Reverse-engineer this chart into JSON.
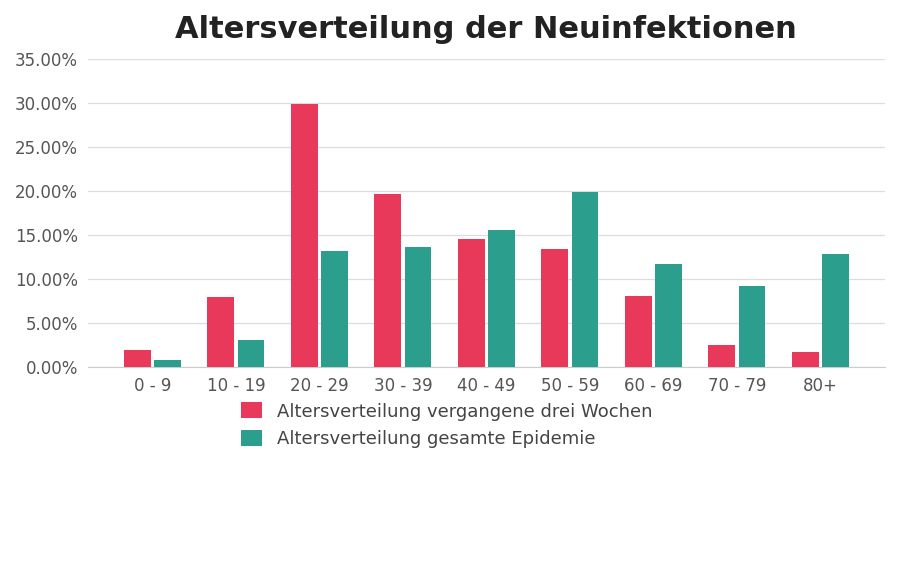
{
  "title": "Altersverteilung der Neuinfektionen",
  "categories": [
    "0 - 9",
    "10 - 19",
    "20 - 29",
    "30 - 39",
    "40 - 49",
    "50 - 59",
    "60 - 69",
    "70 - 79",
    "80+"
  ],
  "series1_label": "Altersverteilung vergangene drei Wochen",
  "series2_label": "Altersverteilung gesamte Epidemie",
  "series1_values": [
    0.02,
    0.08,
    0.299,
    0.197,
    0.145,
    0.134,
    0.081,
    0.025,
    0.017
  ],
  "series2_values": [
    0.008,
    0.031,
    0.132,
    0.136,
    0.156,
    0.199,
    0.117,
    0.092,
    0.128
  ],
  "series1_color": "#E8395A",
  "series2_color": "#2B9E8D",
  "ylim": [
    0,
    0.35
  ],
  "yticks": [
    0.0,
    0.05,
    0.1,
    0.15,
    0.2,
    0.25,
    0.3,
    0.35
  ],
  "background_color": "#FFFFFF",
  "title_fontsize": 22,
  "tick_fontsize": 12,
  "legend_fontsize": 13,
  "bar_width": 0.32,
  "bar_gap": 0.04
}
